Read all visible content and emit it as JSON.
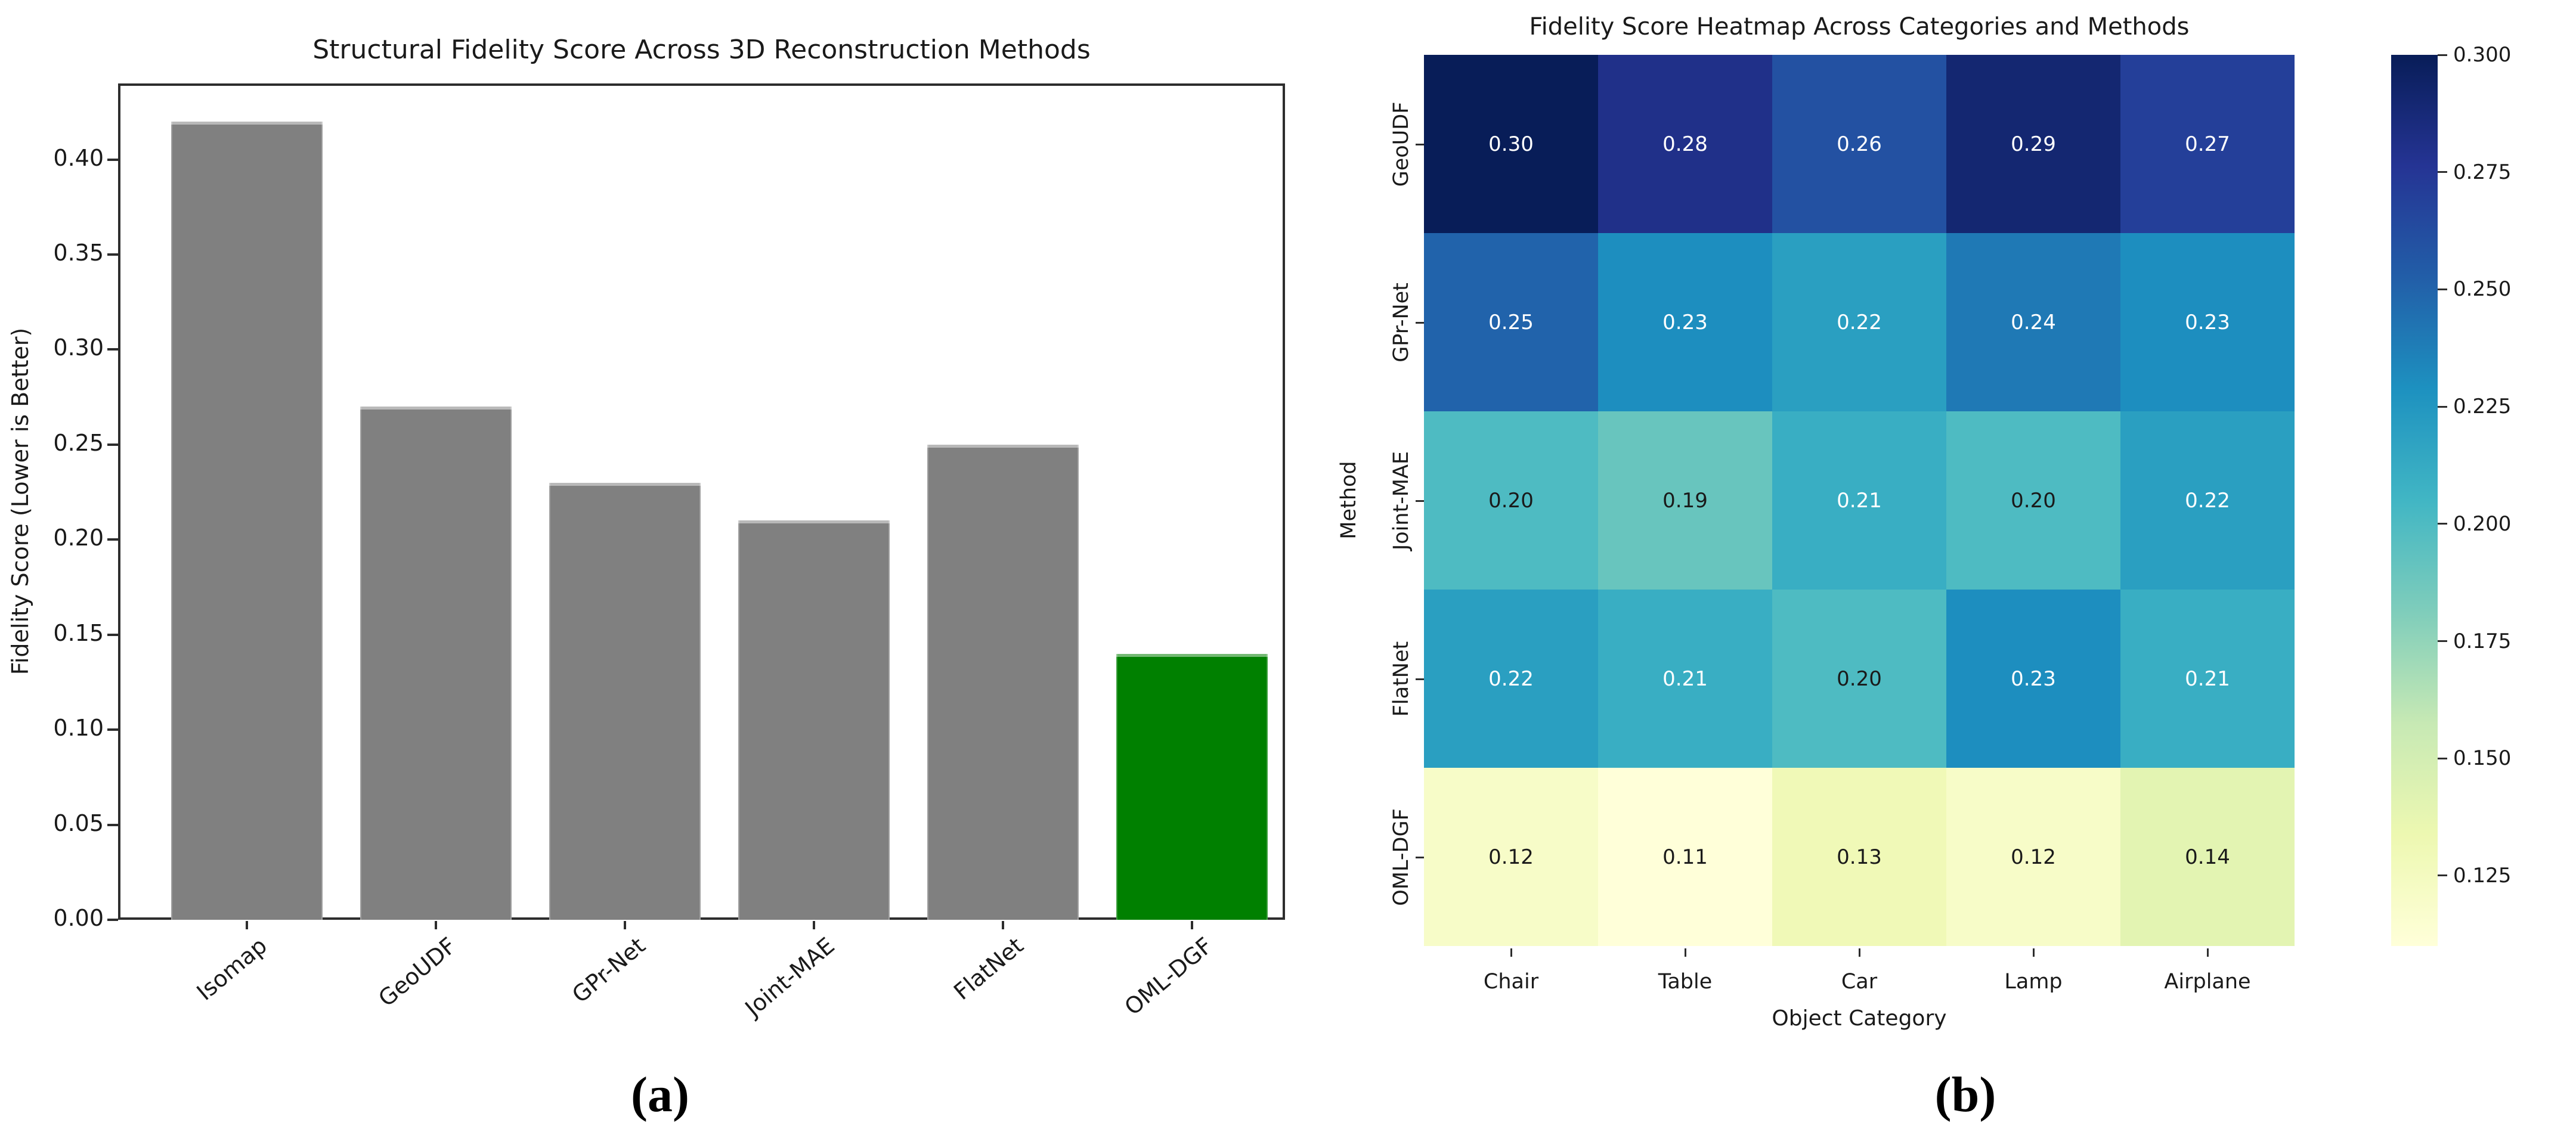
{
  "figure": {
    "panel_a_label": "(a)",
    "panel_b_label": "(b)"
  },
  "chart_data": [
    {
      "type": "bar",
      "panel": "a",
      "panel_label": "(a)",
      "title": "Structural Fidelity Score Across 3D Reconstruction Methods",
      "xlabel": "",
      "ylabel": "Fidelity Score (Lower is Better)",
      "categories": [
        "Isomap",
        "GeoUDF",
        "GPr-Net",
        "Joint-MAE",
        "FlatNet",
        "OML-DGF"
      ],
      "values": [
        0.42,
        0.27,
        0.23,
        0.21,
        0.25,
        0.14
      ],
      "bar_colors": [
        "#808080",
        "#808080",
        "#808080",
        "#808080",
        "#808080",
        "#008000"
      ],
      "highlight_bar": "OML-DGF",
      "ylim": [
        0,
        0.44
      ],
      "yticks": [
        0.0,
        0.05,
        0.1,
        0.15,
        0.2,
        0.25,
        0.3,
        0.35,
        0.4
      ],
      "grid": false,
      "box": true,
      "legend": "none"
    },
    {
      "type": "heatmap",
      "panel": "b",
      "panel_label": "(b)",
      "title": "Fidelity Score Heatmap Across Categories and Methods",
      "xlabel": "Object Category",
      "ylabel": "Method",
      "columns": [
        "Chair",
        "Table",
        "Car",
        "Lamp",
        "Airplane"
      ],
      "rows": [
        "GeoUDF",
        "GPr-Net",
        "Joint-MAE",
        "FlatNet",
        "OML-DGF"
      ],
      "values": [
        [
          0.3,
          0.28,
          0.26,
          0.29,
          0.27
        ],
        [
          0.25,
          0.23,
          0.22,
          0.24,
          0.23
        ],
        [
          0.2,
          0.19,
          0.21,
          0.2,
          0.22
        ],
        [
          0.22,
          0.21,
          0.2,
          0.23,
          0.21
        ],
        [
          0.12,
          0.11,
          0.13,
          0.12,
          0.14
        ]
      ],
      "cell_colors": [
        [
          "#081d58",
          "#203089",
          "#2351a2",
          "#142771",
          "#243f99"
        ],
        [
          "#2163ab",
          "#1d8ebf",
          "#2a9fc1",
          "#1f79b5",
          "#1d8ebf"
        ],
        [
          "#4ebbc2",
          "#68c5be",
          "#39aec3",
          "#4ebbc2",
          "#2a9fc1"
        ],
        [
          "#2a9fc1",
          "#39aec3",
          "#4ebbc2",
          "#1d8ebf",
          "#39aec3"
        ],
        [
          "#f7fcc8",
          "#ffffd9",
          "#f0f9b7",
          "#f7fcc8",
          "#e3f4b2"
        ]
      ],
      "value_decimals": 2,
      "cell_text_light": "#ffffff",
      "cell_text_dark": "#1a1a1a",
      "cell_text_threshold": 0.205,
      "colormap": "YlGnBu",
      "colorbar": {
        "vmin": 0.11,
        "vmax": 0.3,
        "tick_values": [
          0.3,
          0.275,
          0.25,
          0.225,
          0.2,
          0.175,
          0.15,
          0.125
        ],
        "tick_labels": [
          "0.300",
          "0.275",
          "0.250",
          "0.225",
          "0.200",
          "0.175",
          "0.150",
          "0.125"
        ],
        "gradient_top_to_bottom": [
          "#081d58",
          "#253494",
          "#225ea8",
          "#1d91c0",
          "#41b6c4",
          "#7fcdbb",
          "#c7e9b4",
          "#edf8b1",
          "#ffffd9"
        ]
      }
    }
  ]
}
